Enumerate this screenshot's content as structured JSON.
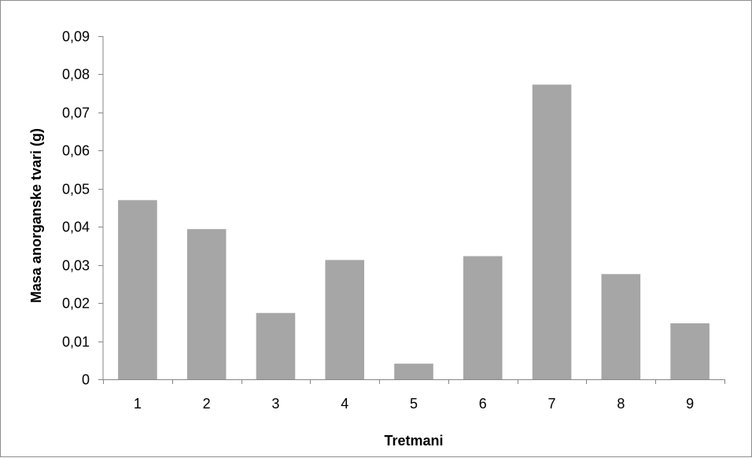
{
  "chart_data": {
    "type": "bar",
    "title": "",
    "xlabel": "Tretmani",
    "ylabel": "Masa anorganske tvari (g)",
    "categories": [
      "1",
      "2",
      "3",
      "4",
      "5",
      "6",
      "7",
      "8",
      "9"
    ],
    "values": [
      0.047,
      0.0394,
      0.0174,
      0.0313,
      0.0041,
      0.0323,
      0.0773,
      0.0276,
      0.0147
    ],
    "ylim": [
      0,
      0.09
    ],
    "yticks": [
      0,
      0.01,
      0.02,
      0.03,
      0.04,
      0.05,
      0.06,
      0.07,
      0.08,
      0.09
    ],
    "ytick_labels": [
      "0",
      "0,01",
      "0,02",
      "0,03",
      "0,04",
      "0,05",
      "0,06",
      "0,07",
      "0,08",
      "0,09"
    ],
    "grid": false,
    "legend": "none",
    "colors": {
      "bar": "#a6a6a6",
      "axis": "#868686",
      "text": "#000000"
    }
  }
}
